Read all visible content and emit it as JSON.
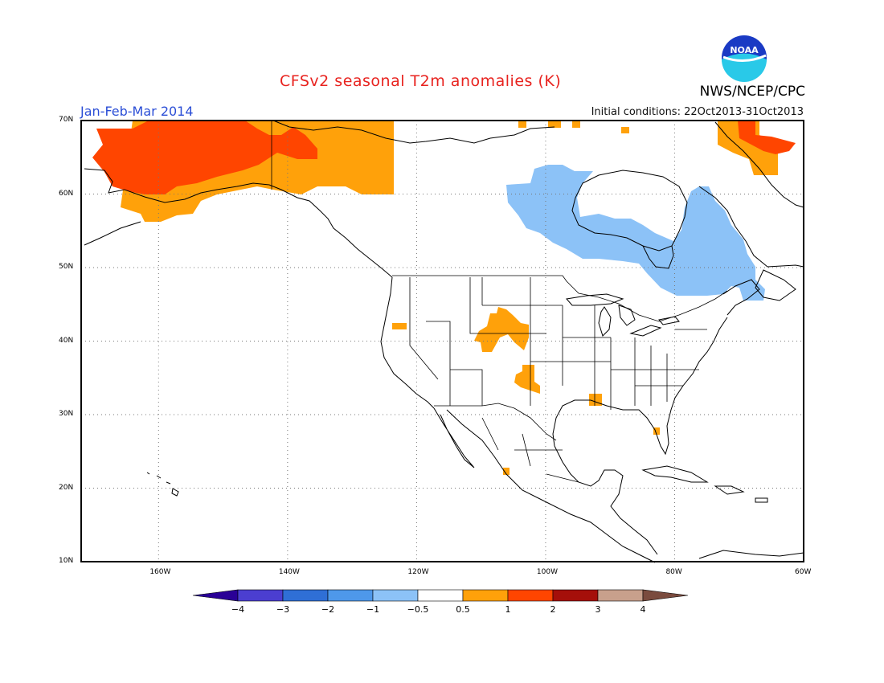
{
  "title": "CFSv2 seasonal T2m anomalies (K)",
  "period": "Jan-Feb-Mar 2014",
  "initial_conditions": "Initial conditions: 22Oct2013-31Oct2013",
  "agency": "NWS/NCEP/CPC",
  "logo_text": "NOAA",
  "map": {
    "lat_ticks": [
      "70N",
      "60N",
      "50N",
      "40N",
      "30N",
      "20N",
      "10N"
    ],
    "lon_ticks": [
      "160W",
      "140W",
      "120W",
      "100W",
      "80W",
      "60W"
    ],
    "lon_range": [
      -172,
      -60
    ],
    "lat_range": [
      10,
      70
    ],
    "grid": true
  },
  "colorbar": {
    "labels": [
      "-4",
      "-3",
      "-2",
      "-1",
      "-0.5",
      "0.5",
      "1",
      "2",
      "3",
      "4"
    ],
    "colors": [
      "#2a0096",
      "#4b3ed0",
      "#2f6fd6",
      "#4e98ea",
      "#8cc2f7",
      "#ffffff",
      "#ffa10a",
      "#ff4500",
      "#a50f0a",
      "#c8a08c",
      "#7a4b3e"
    ]
  },
  "anomaly_regions": [
    {
      "name": "alaska-warm",
      "category": "1-2",
      "color": "#ff4500"
    },
    {
      "name": "alaska-yukon-warm",
      "category": "0.5-1",
      "color": "#ffa10a"
    },
    {
      "name": "greenland-warm",
      "category": "1-2",
      "color": "#ff4500"
    },
    {
      "name": "canada-cool",
      "category": "-1 to -0.5",
      "color": "#8cc2f7"
    },
    {
      "name": "rockies-warm",
      "category": "0.5-1",
      "color": "#ffa10a"
    }
  ]
}
